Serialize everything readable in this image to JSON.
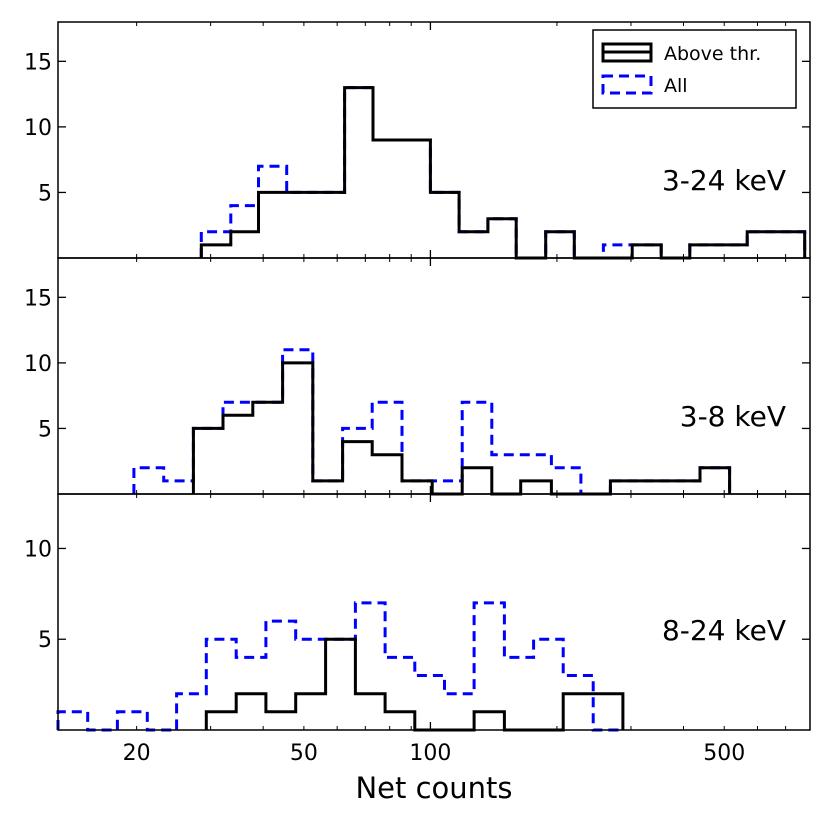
{
  "chart_data": {
    "type": "histogram",
    "xlabel": "Net counts",
    "xscale": "log",
    "xlim": [
      13,
      800
    ],
    "x_ticks": [
      {
        "value": 20,
        "label": "20"
      },
      {
        "value": 50,
        "label": "50"
      },
      {
        "value": 100,
        "label": "100"
      },
      {
        "value": 500,
        "label": "500"
      }
    ],
    "legend": {
      "position": "top-right",
      "entries": [
        {
          "key": "above",
          "label": "Above thr."
        },
        {
          "key": "all",
          "label": "All"
        }
      ]
    },
    "styles": {
      "above": {
        "color": "#000000",
        "dash": "solid"
      },
      "all": {
        "color": "#0000ff",
        "dash": "dashed"
      }
    },
    "panels": [
      {
        "band": "3-24 keV",
        "ylim": [
          0,
          18
        ],
        "y_ticks": [
          5,
          10,
          15
        ],
        "series": [
          {
            "key": "all",
            "name": "All",
            "edges": [
              28.5,
              33.5,
              39,
              45.5,
              53.5,
              62.5,
              73,
              85.5,
              100,
              117,
              137,
              160,
              188,
              220,
              258,
              302,
              354,
              414,
              485,
              567,
              664,
              777
            ],
            "counts": [
              2,
              4,
              7,
              5,
              5,
              13,
              9,
              9,
              5,
              2,
              3,
              0,
              2,
              0,
              1,
              1,
              0,
              1,
              1,
              2,
              2
            ]
          },
          {
            "key": "above",
            "name": "Above thr.",
            "edges": [
              28.5,
              33.5,
              39,
              45.5,
              53.5,
              62.5,
              73,
              85.5,
              100,
              117,
              137,
              160,
              188,
              220,
              258,
              302,
              354,
              414,
              485,
              567,
              664,
              777
            ],
            "counts": [
              1,
              2,
              5,
              5,
              5,
              13,
              9,
              9,
              5,
              2,
              3,
              0,
              2,
              0,
              0,
              1,
              0,
              1,
              1,
              2,
              2
            ]
          }
        ]
      },
      {
        "band": "3-8 keV",
        "ylim": [
          0,
          18
        ],
        "y_ticks": [
          5,
          10,
          15
        ],
        "series": [
          {
            "key": "all",
            "name": "All",
            "edges": [
              19.7,
              23.2,
              27.3,
              32.1,
              37.8,
              44.5,
              52.5,
              61.8,
              72.7,
              85.6,
              101,
              119,
              140,
              164,
              194,
              228,
              268,
              316,
              372,
              438,
              515
            ],
            "counts": [
              2,
              1,
              5,
              7,
              7,
              11,
              1,
              5,
              7,
              1,
              1,
              7,
              3,
              3,
              2,
              0,
              1,
              1,
              1,
              2
            ]
          },
          {
            "key": "above",
            "name": "Above thr.",
            "edges": [
              27.3,
              32.1,
              37.8,
              44.5,
              52.5,
              61.8,
              72.7,
              85.6,
              101,
              119,
              140,
              164,
              194,
              228,
              268,
              316,
              372,
              438,
              515
            ],
            "counts": [
              5,
              6,
              7,
              10,
              1,
              4,
              3,
              1,
              0,
              2,
              0,
              1,
              0,
              0,
              1,
              1,
              1,
              2
            ]
          }
        ]
      },
      {
        "band": "8-24 keV",
        "ylim": [
          0,
          13
        ],
        "y_ticks": [
          5,
          10
        ],
        "series": [
          {
            "key": "all",
            "name": "All",
            "edges": [
              13,
              15.3,
              18,
              21.2,
              24.9,
              29.3,
              34.5,
              40.6,
              47.8,
              56.3,
              66.3,
              78,
              91.8,
              108,
              127,
              150,
              176,
              207,
              244,
              287
            ],
            "counts": [
              1,
              0,
              1,
              0,
              2,
              5,
              4,
              6,
              5,
              5,
              7,
              4,
              3,
              2,
              7,
              4,
              5,
              3,
              0
            ]
          },
          {
            "key": "above",
            "name": "Above thr.",
            "edges": [
              29.3,
              34.5,
              40.6,
              47.8,
              56.3,
              66.3,
              78,
              91.8,
              108,
              127,
              150,
              176,
              207,
              244,
              287
            ],
            "counts": [
              1,
              2,
              1,
              2,
              5,
              2,
              1,
              0,
              0,
              1,
              0,
              0,
              2,
              2
            ]
          }
        ]
      }
    ]
  }
}
